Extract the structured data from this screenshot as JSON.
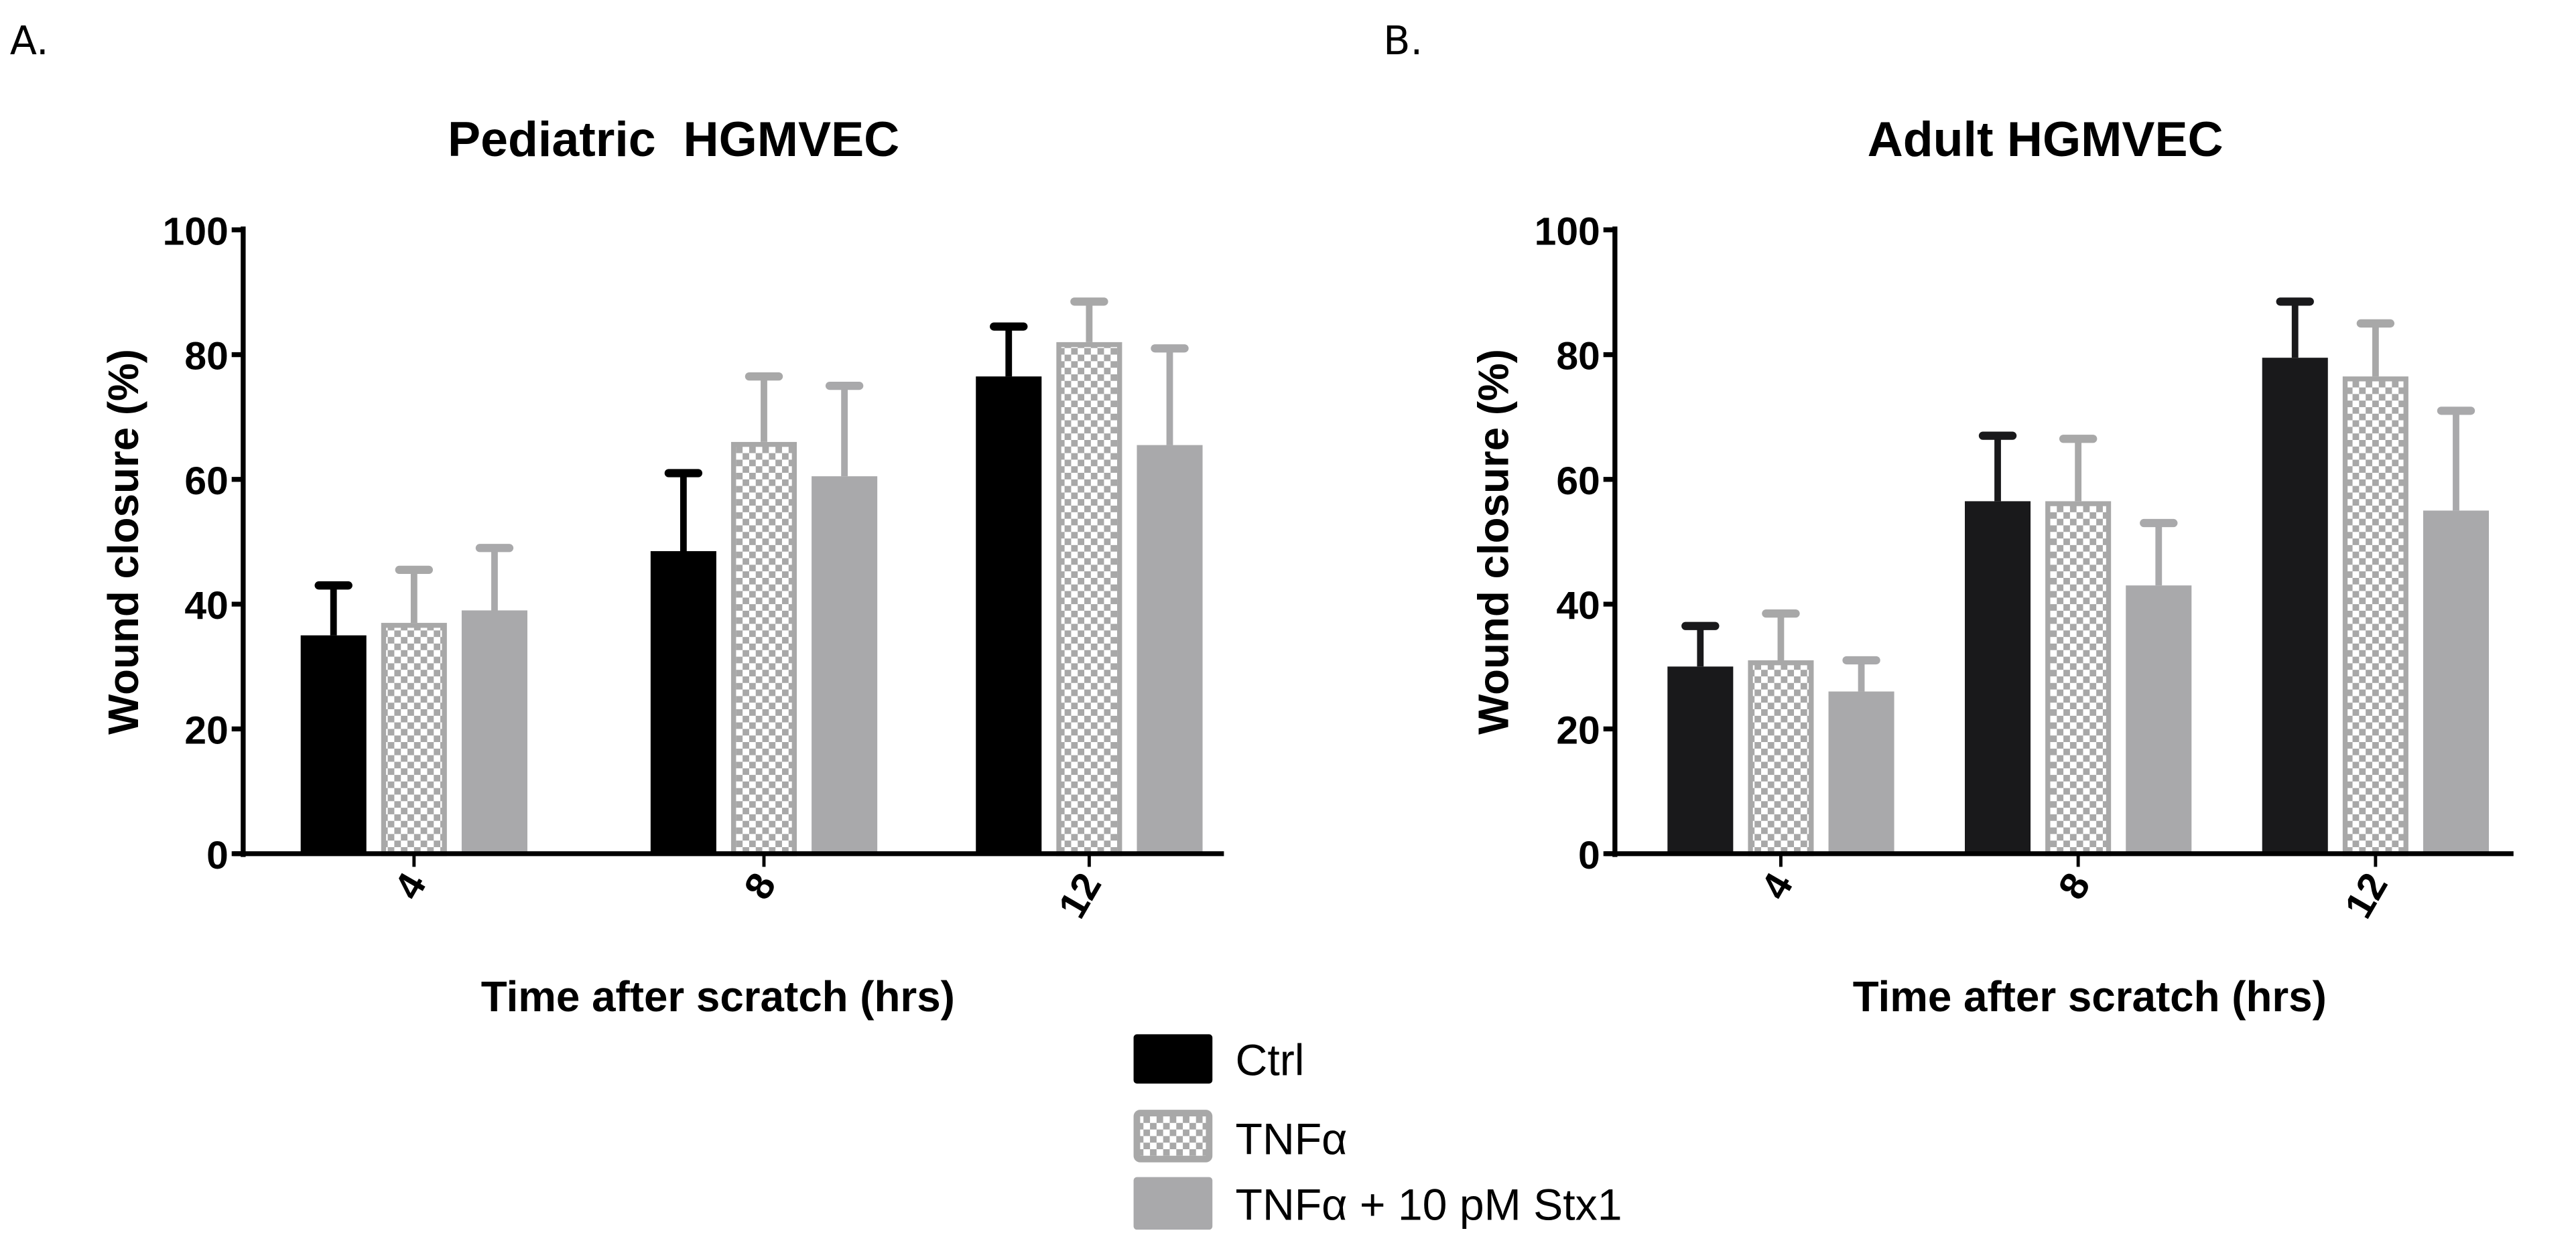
{
  "panels": [
    {
      "letter": "A.",
      "title": "Pediatric  HGMVEC"
    },
    {
      "letter": "B.",
      "title": "Adult HGMVEC"
    }
  ],
  "legend": [
    {
      "label": "Ctrl",
      "pattern": "solid-black"
    },
    {
      "label": "TNFα",
      "pattern": "checkerboard-gray"
    },
    {
      "label": "TNFα + 10 pM Stx1",
      "pattern": "solid-gray"
    }
  ],
  "colors": {
    "ctrl": "#000000",
    "ctrl_b": "#19191b",
    "tnf": "#a8a8a8",
    "stx": "#a9a9ab"
  },
  "chart_data": [
    {
      "type": "bar",
      "title": "Pediatric  HGMVEC",
      "xlabel": "Time after scratch (hrs)",
      "ylabel": "Wound closure (%)",
      "categories": [
        "4",
        "8",
        "12"
      ],
      "ylim": [
        0,
        100
      ],
      "yticks": [
        "0",
        "20",
        "40",
        "60",
        "80",
        "100"
      ],
      "grid": false,
      "series": [
        {
          "name": "Ctrl",
          "values": [
            35,
            48.5,
            76.5
          ],
          "error_upper": [
            43,
            61,
            84.5
          ]
        },
        {
          "name": "TNFα",
          "values": [
            37,
            66,
            82
          ],
          "error_upper": [
            45.5,
            76.5,
            88.5
          ]
        },
        {
          "name": "TNFα + 10 pM Stx1",
          "values": [
            39,
            60.5,
            65.5
          ],
          "error_upper": [
            49,
            75,
            81
          ]
        }
      ]
    },
    {
      "type": "bar",
      "title": "Adult HGMVEC",
      "xlabel": "Time after scratch (hrs)",
      "ylabel": "Wound closure (%)",
      "categories": [
        "4",
        "8",
        "12"
      ],
      "ylim": [
        0,
        100
      ],
      "yticks": [
        "0",
        "20",
        "40",
        "60",
        "80",
        "100"
      ],
      "grid": false,
      "series": [
        {
          "name": "Ctrl",
          "values": [
            30,
            56.5,
            79.5
          ],
          "error_upper": [
            36.5,
            67,
            88.5
          ]
        },
        {
          "name": "TNFα",
          "values": [
            31,
            56.5,
            76.5
          ],
          "error_upper": [
            38.5,
            66.5,
            85
          ]
        },
        {
          "name": "TNFα + 10 pM Stx1",
          "values": [
            26,
            43,
            55
          ],
          "error_upper": [
            31,
            53,
            71
          ]
        }
      ]
    }
  ]
}
